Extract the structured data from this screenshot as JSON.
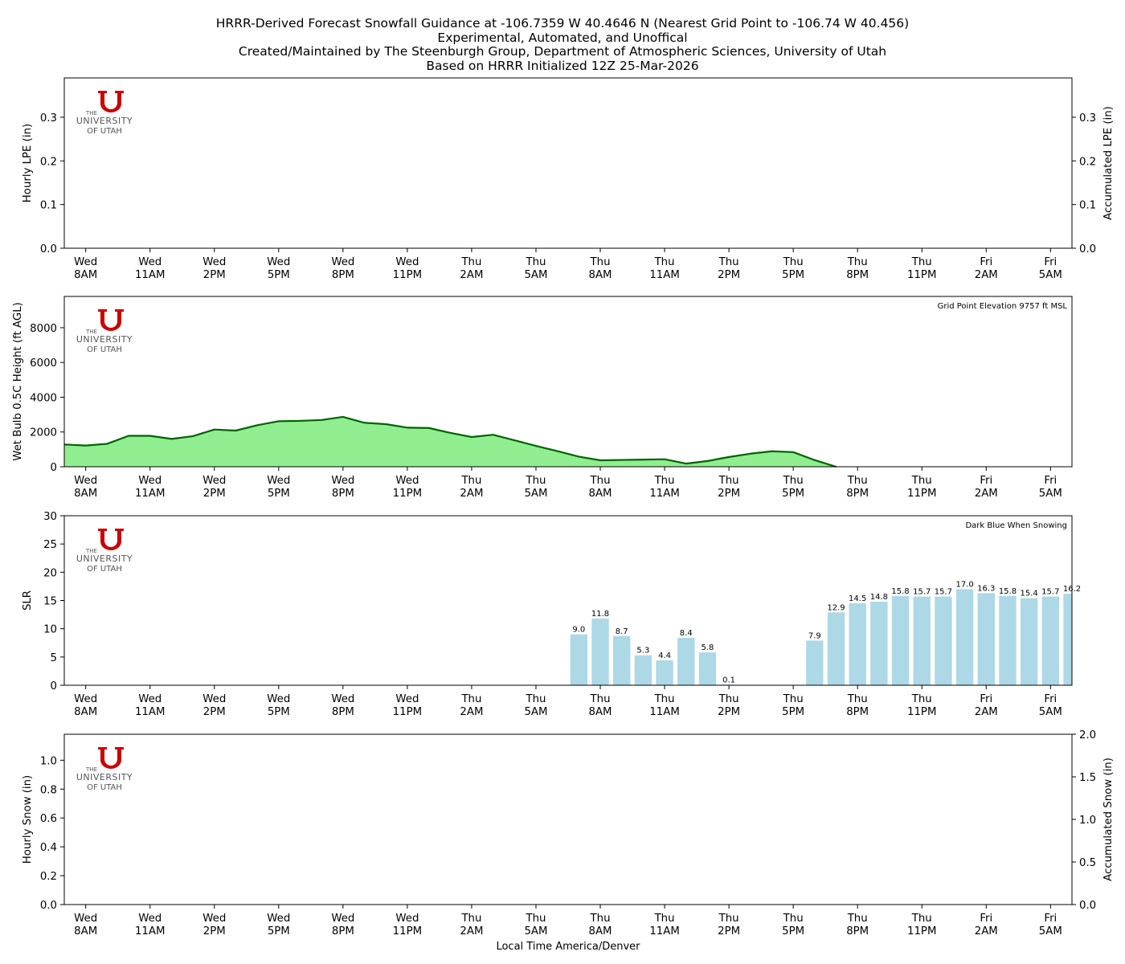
{
  "title_lines": [
    "HRRR-Derived Forecast Snowfall Guidance at -106.7359 W 40.4646 N (Nearest Grid Point to -106.74 W 40.456)",
    "Experimental, Automated, and Unoffical",
    "Created/Maintained by The Steenburgh Group, Department of Atmospheric Sciences, University of Utah",
    "Based on HRRR Initialized 12Z 25-Mar-2026"
  ],
  "logo": {
    "line1": "THE",
    "line2": "UNIVERSITY",
    "line3": "OF UTAH",
    "color": "#cc0000"
  },
  "x_axis": {
    "label": "Local Time America/Denver",
    "range": [
      -1,
      46
    ],
    "ticks": [
      {
        "hour": 0,
        "day": "Wed",
        "time": "8AM"
      },
      {
        "hour": 3,
        "day": "Wed",
        "time": "11AM"
      },
      {
        "hour": 6,
        "day": "Wed",
        "time": "2PM"
      },
      {
        "hour": 9,
        "day": "Wed",
        "time": "5PM"
      },
      {
        "hour": 12,
        "day": "Wed",
        "time": "8PM"
      },
      {
        "hour": 15,
        "day": "Wed",
        "time": "11PM"
      },
      {
        "hour": 18,
        "day": "Thu",
        "time": "2AM"
      },
      {
        "hour": 21,
        "day": "Thu",
        "time": "5AM"
      },
      {
        "hour": 24,
        "day": "Thu",
        "time": "8AM"
      },
      {
        "hour": 27,
        "day": "Thu",
        "time": "11AM"
      },
      {
        "hour": 30,
        "day": "Thu",
        "time": "2PM"
      },
      {
        "hour": 33,
        "day": "Thu",
        "time": "5PM"
      },
      {
        "hour": 36,
        "day": "Thu",
        "time": "8PM"
      },
      {
        "hour": 39,
        "day": "Thu",
        "time": "11PM"
      },
      {
        "hour": 42,
        "day": "Fri",
        "time": "2AM"
      },
      {
        "hour": 45,
        "day": "Fri",
        "time": "5AM"
      }
    ]
  },
  "chart_data": [
    {
      "type": "bar",
      "ylabel": "Hourly LPE (in)",
      "ylabel_right": "Accumulated LPE (in)",
      "ylim": [
        0,
        0.39
      ],
      "yticks": [
        "0.0",
        "0.1",
        "0.2",
        "0.3"
      ],
      "yticks_right": [
        "0.0",
        "0.1",
        "0.2",
        "0.3"
      ],
      "values": [],
      "annotation": ""
    },
    {
      "type": "area",
      "ylabel": "Wet Bulb 0.5C Height (ft AGL)",
      "ylim": [
        0,
        9800
      ],
      "yticks": [
        "0",
        "2000",
        "4000",
        "6000",
        "8000"
      ],
      "annotation": "Grid Point Elevation 9757 ft MSL",
      "fill_color": "#90ee90",
      "line_color": "#006400",
      "x": [
        -1,
        0,
        1,
        2,
        3,
        4,
        5,
        6,
        7,
        8,
        9,
        10,
        11,
        12,
        13,
        14,
        15,
        16,
        17,
        18,
        19,
        20,
        21,
        22,
        23,
        24,
        25,
        26,
        27,
        28,
        29,
        30,
        31,
        32,
        33,
        34,
        35
      ],
      "values": [
        1280,
        1220,
        1320,
        1780,
        1780,
        1600,
        1760,
        2140,
        2080,
        2390,
        2620,
        2640,
        2690,
        2870,
        2530,
        2450,
        2250,
        2230,
        1950,
        1710,
        1840,
        1520,
        1200,
        900,
        580,
        370,
        390,
        410,
        430,
        180,
        330,
        560,
        750,
        890,
        840,
        380,
        0
      ]
    },
    {
      "type": "bar",
      "ylabel": "SLR",
      "ylim": [
        0,
        30
      ],
      "yticks": [
        "0",
        "5",
        "10",
        "15",
        "20",
        "25",
        "30"
      ],
      "annotation": "Dark Blue When Snowing",
      "bar_color": "#add8e6",
      "x": [
        23,
        24,
        25,
        26,
        27,
        28,
        29,
        30,
        34,
        35,
        36,
        37,
        38,
        39,
        40,
        41,
        42,
        43,
        44,
        45,
        46
      ],
      "values": [
        9.0,
        11.8,
        8.7,
        5.3,
        4.4,
        8.4,
        5.8,
        0.1,
        7.9,
        12.9,
        14.5,
        14.8,
        15.8,
        15.7,
        15.7,
        17.0,
        16.3,
        15.8,
        15.4,
        15.7,
        16.2
      ],
      "labels": [
        "9.0",
        "11.8",
        "8.7",
        "5.3",
        "4.4",
        "8.4",
        "5.8",
        "0.1",
        "7.9",
        "12.9",
        "14.5",
        "14.8",
        "15.8",
        "15.7",
        "15.7",
        "17.0",
        "16.3",
        "15.8",
        "15.4",
        "15.7",
        "16.2"
      ]
    },
    {
      "type": "bar",
      "ylabel": "Hourly Snow (in)",
      "ylabel_right": "Accumulated Snow (in)",
      "ylim": [
        0,
        1.18
      ],
      "yticks": [
        "0.0",
        "0.2",
        "0.4",
        "0.6",
        "0.8",
        "1.0"
      ],
      "yticks_right": [
        "0.0",
        "0.5",
        "1.0",
        "1.5",
        "2.0"
      ],
      "yright_lim": [
        0,
        2.0
      ],
      "values": [],
      "annotation": ""
    }
  ]
}
